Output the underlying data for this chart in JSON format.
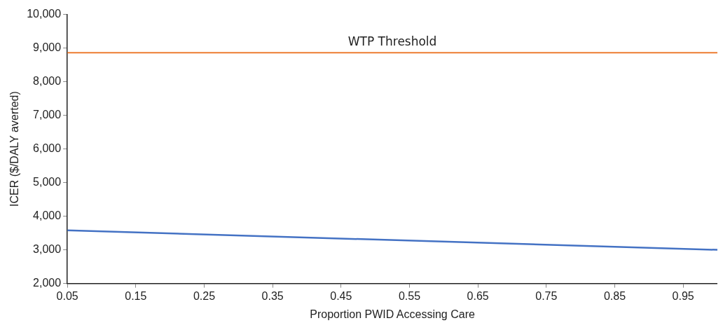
{
  "chart_data": {
    "type": "line",
    "xlabel": "Proportion PWID Accessing Care",
    "ylabel": "ICER ($/DALY averted)",
    "x": [
      0.05,
      1.0
    ],
    "series": [
      {
        "color": "#4472c4",
        "values": [
          3580,
          3000
        ]
      }
    ],
    "xlim": [
      0.05,
      1.0
    ],
    "xticks": [
      0.05,
      0.15,
      0.25,
      0.35,
      0.45,
      0.55,
      0.65,
      0.75,
      0.85,
      0.95
    ],
    "ylim": [
      2000,
      10000
    ],
    "yticks": [
      {
        "value": 2000,
        "label": "2,000"
      },
      {
        "value": 3000,
        "label": "3,000"
      },
      {
        "value": 4000,
        "label": "4,000"
      },
      {
        "value": 5000,
        "label": "5,000"
      },
      {
        "value": 6000,
        "label": "6,000"
      },
      {
        "value": 7000,
        "label": "7,000"
      },
      {
        "value": 8000,
        "label": "8,000"
      },
      {
        "value": 9000,
        "label": "9,000"
      },
      {
        "value": 10000,
        "label": "10,000"
      }
    ],
    "ref_lines": [
      {
        "axis": "y",
        "value": 8860,
        "label": "WTP Threshold",
        "color": "#ed7d31"
      }
    ],
    "grid": false,
    "legend": false,
    "marker": "none",
    "line_style": "solid"
  }
}
